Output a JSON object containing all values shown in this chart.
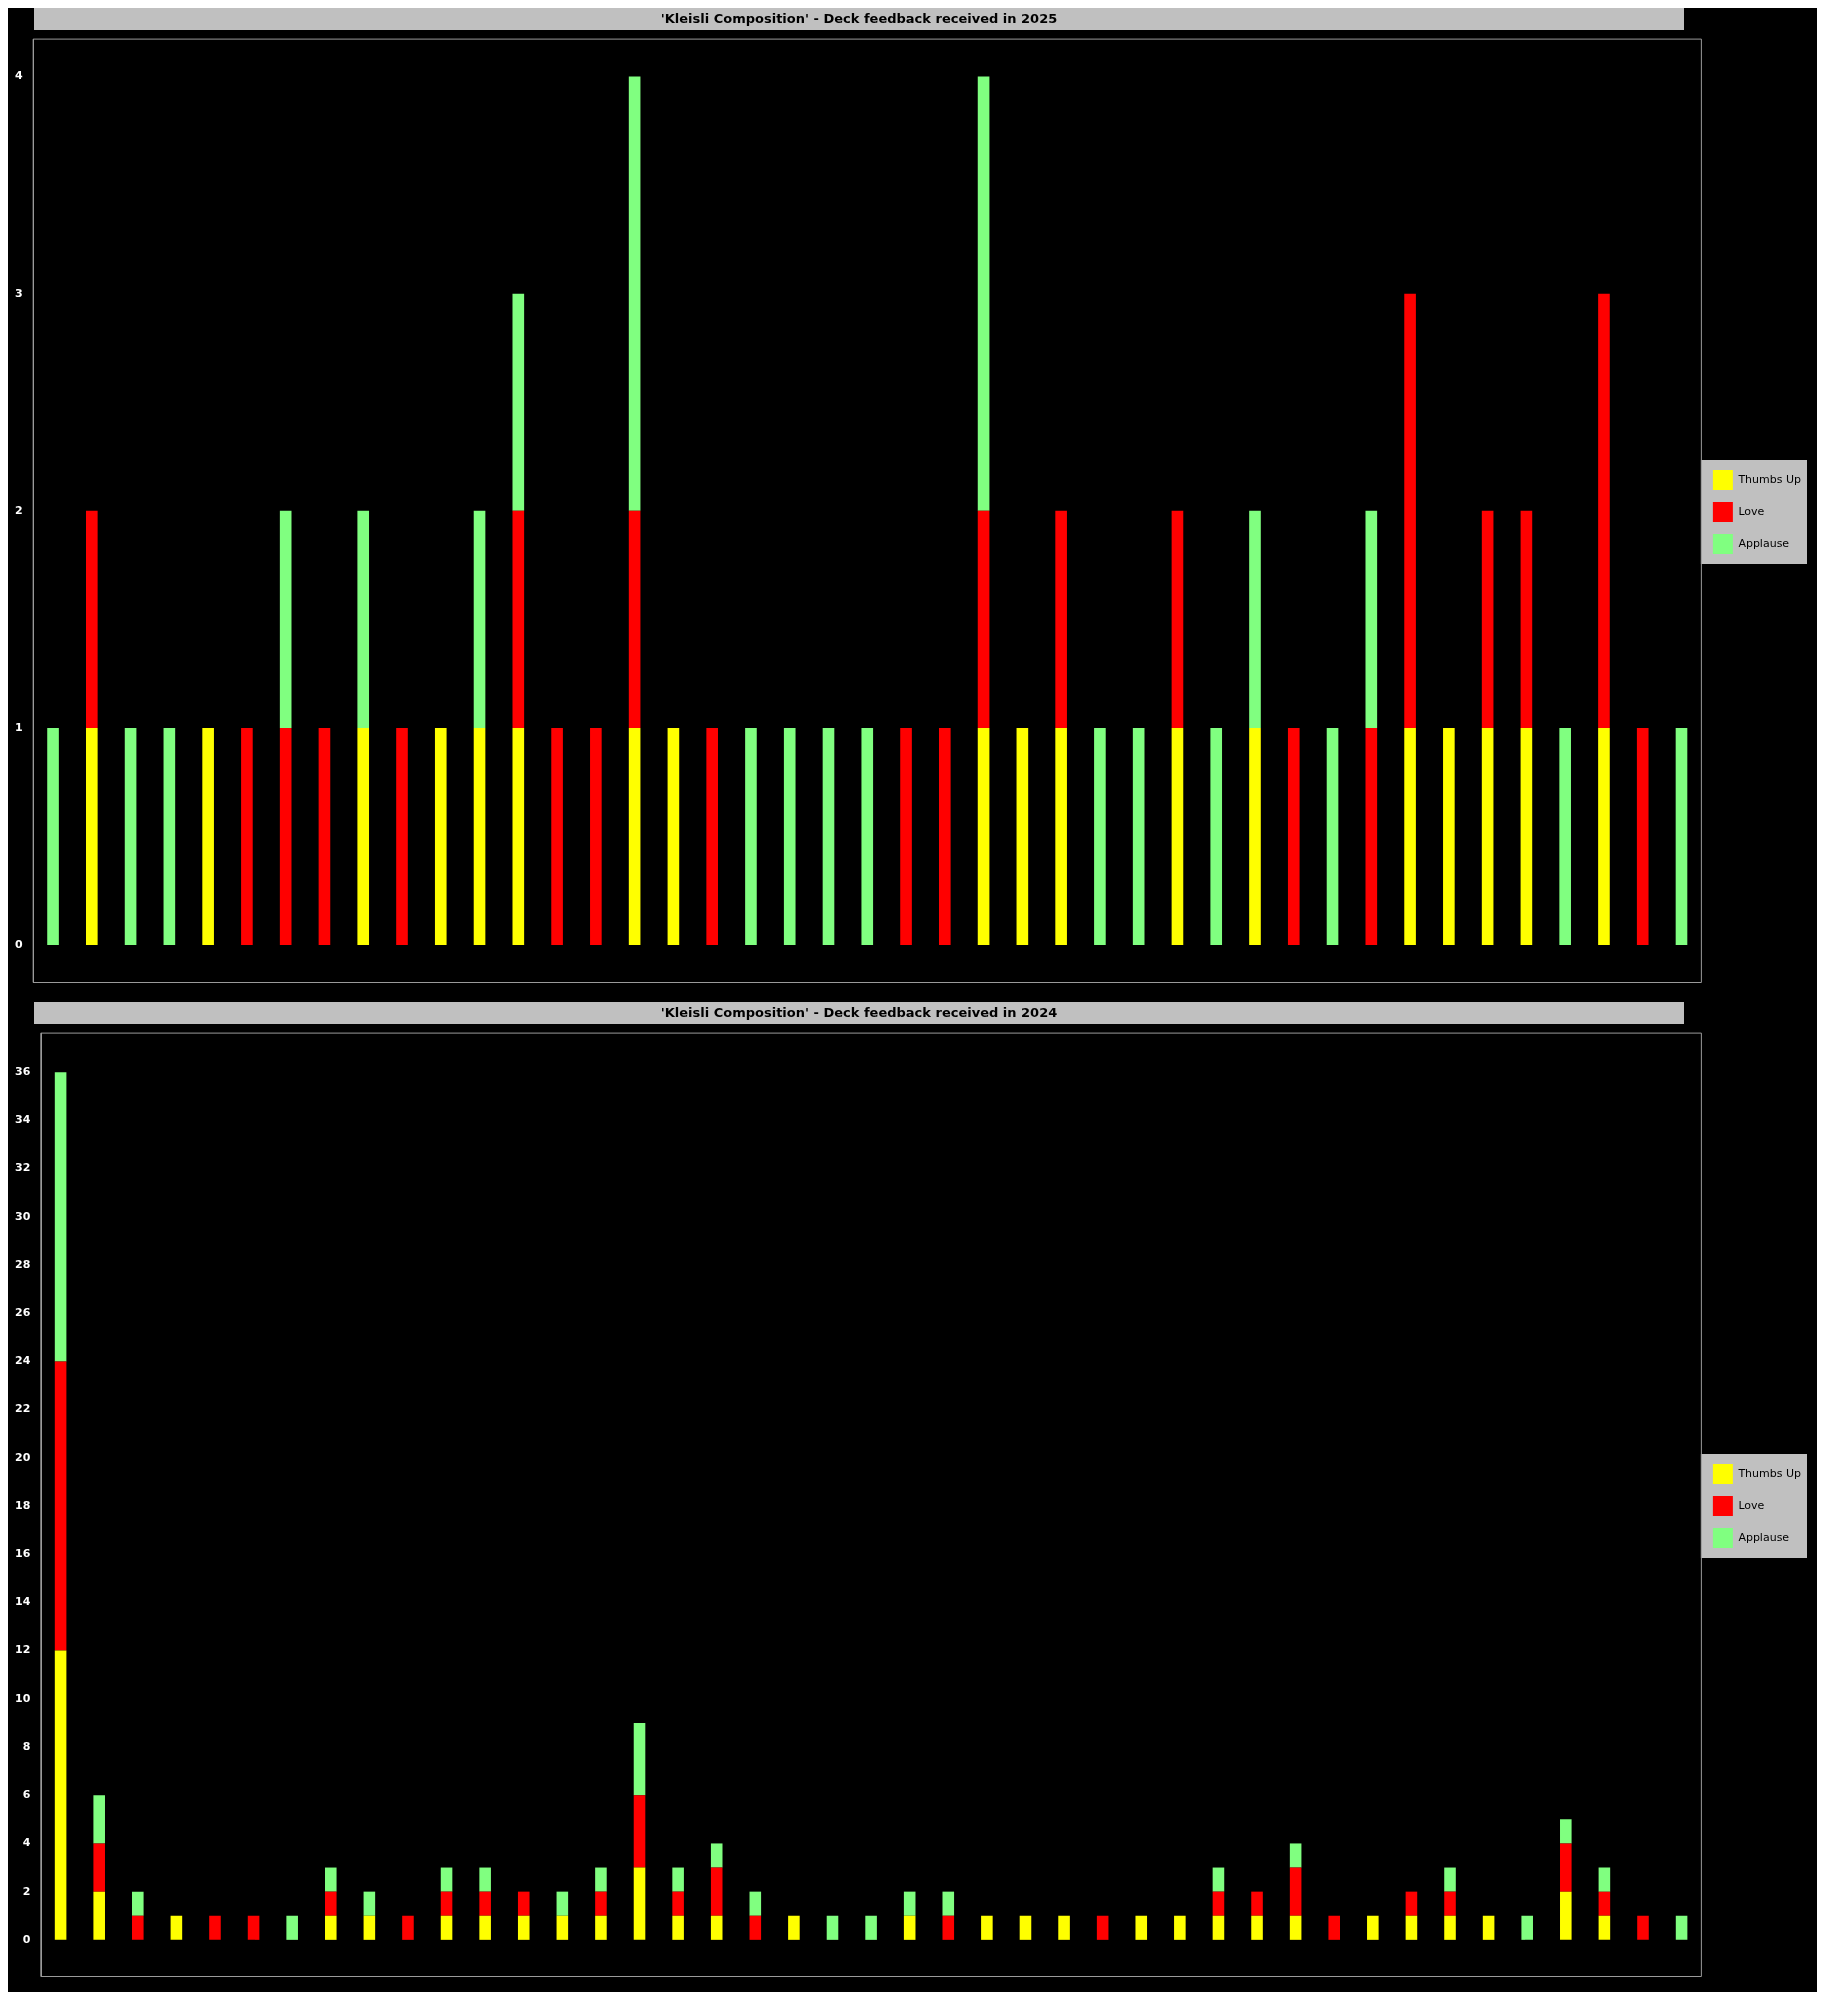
{
  "chart_data": [
    {
      "type": "bar",
      "title": "'Kleisli Composition' - Deck feedback received in 2025",
      "stacked": true,
      "legend": "right",
      "grid": false,
      "tick_labels": "y",
      "ylim": [
        -0.17,
        4.17
      ],
      "yticks": [
        0,
        1,
        2,
        3,
        4
      ],
      "categories": [
        null,
        null,
        null,
        null,
        null,
        null,
        null,
        null,
        null,
        null,
        null,
        null,
        null,
        null,
        null,
        null,
        null,
        null,
        null,
        null,
        null,
        null,
        null,
        null,
        null,
        null,
        null,
        null,
        null,
        null,
        null,
        null,
        null,
        null,
        null,
        null,
        null,
        null,
        null,
        null,
        null,
        null,
        null
      ],
      "series": [
        {
          "name": "Thumbs Up",
          "color": "#ffff00",
          "values": [
            0,
            1,
            0,
            0,
            1,
            0,
            0,
            0,
            1,
            0,
            1,
            1,
            1,
            0,
            0,
            1,
            1,
            0,
            0,
            0,
            0,
            0,
            0,
            0,
            1,
            1,
            1,
            0,
            0,
            1,
            0,
            1,
            0,
            0,
            0,
            1,
            1,
            1,
            1,
            0,
            1,
            0,
            0
          ]
        },
        {
          "name": "Love",
          "color": "#ff0000",
          "values": [
            0,
            1,
            0,
            0,
            0,
            1,
            1,
            1,
            0,
            1,
            0,
            0,
            1,
            1,
            1,
            1,
            0,
            1,
            0,
            0,
            0,
            0,
            1,
            1,
            1,
            0,
            1,
            0,
            0,
            1,
            0,
            0,
            1,
            0,
            1,
            2,
            0,
            1,
            1,
            0,
            2,
            1,
            0
          ]
        },
        {
          "name": "Applause",
          "color": "#80ff80",
          "values": [
            1,
            0,
            1,
            1,
            0,
            0,
            1,
            0,
            1,
            0,
            0,
            1,
            1,
            0,
            0,
            2,
            0,
            0,
            1,
            1,
            1,
            1,
            0,
            0,
            2,
            0,
            0,
            1,
            1,
            0,
            1,
            1,
            0,
            1,
            1,
            0,
            0,
            0,
            0,
            1,
            0,
            0,
            1
          ]
        }
      ]
    },
    {
      "type": "bar",
      "title": "'Kleisli Composition' - Deck feedback received in 2024",
      "stacked": true,
      "legend": "right",
      "grid": false,
      "tick_labels": "y",
      "ylim": [
        -1.5,
        37.6
      ],
      "yticks": [
        0,
        2,
        4,
        6,
        8,
        10,
        12,
        14,
        16,
        18,
        20,
        22,
        24,
        26,
        28,
        30,
        32,
        34,
        36
      ],
      "categories": [
        null,
        null,
        null,
        null,
        null,
        null,
        null,
        null,
        null,
        null,
        null,
        null,
        null,
        null,
        null,
        null,
        null,
        null,
        null,
        null,
        null,
        null,
        null,
        null,
        null,
        null,
        null,
        null,
        null,
        null,
        null,
        null,
        null,
        null,
        null,
        null,
        null,
        null,
        null,
        null,
        null,
        null,
        null
      ],
      "series": [
        {
          "name": "Thumbs Up",
          "color": "#ffff00",
          "values": [
            12,
            2,
            0,
            1,
            0,
            0,
            0,
            1,
            1,
            0,
            1,
            1,
            1,
            1,
            1,
            3,
            1,
            1,
            0,
            1,
            0,
            0,
            1,
            0,
            1,
            1,
            1,
            0,
            1,
            1,
            1,
            1,
            1,
            0,
            1,
            1,
            1,
            1,
            0,
            2,
            1,
            0,
            0
          ]
        },
        {
          "name": "Love",
          "color": "#ff0000",
          "values": [
            12,
            2,
            1,
            0,
            1,
            1,
            0,
            1,
            0,
            1,
            1,
            1,
            1,
            0,
            1,
            3,
            1,
            2,
            1,
            0,
            0,
            0,
            0,
            1,
            0,
            0,
            0,
            1,
            0,
            0,
            1,
            1,
            2,
            1,
            0,
            1,
            1,
            0,
            0,
            2,
            1,
            1,
            0
          ]
        },
        {
          "name": "Applause",
          "color": "#80ff80",
          "values": [
            12,
            2,
            1,
            0,
            0,
            0,
            1,
            1,
            1,
            0,
            1,
            1,
            0,
            1,
            1,
            3,
            1,
            1,
            1,
            0,
            1,
            1,
            1,
            1,
            0,
            0,
            0,
            0,
            0,
            0,
            1,
            0,
            1,
            0,
            0,
            0,
            1,
            0,
            1,
            1,
            1,
            0,
            1
          ]
        }
      ]
    }
  ]
}
